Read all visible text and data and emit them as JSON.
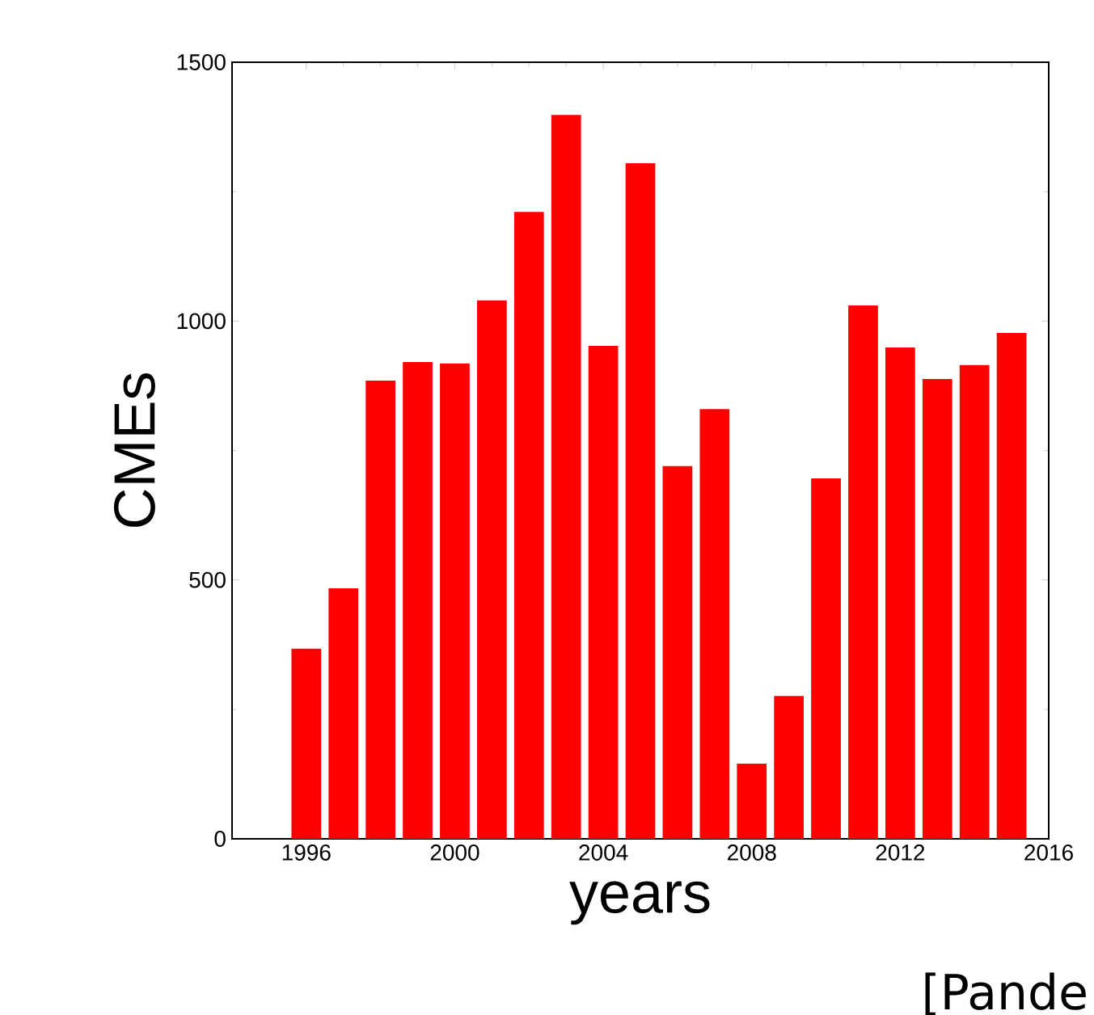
{
  "chart_data": {
    "type": "bar",
    "xlabel": "years",
    "ylabel": "CMEs",
    "color": "#ff0000",
    "x": [
      1996,
      1997,
      1998,
      1999,
      2000,
      2001,
      2002,
      2003,
      2004,
      2005,
      2006,
      2007,
      2008,
      2009,
      2010,
      2011,
      2012,
      2013,
      2014,
      2015
    ],
    "values": [
      367,
      484,
      885,
      921,
      918,
      1040,
      1211,
      1398,
      952,
      1305,
      720,
      830,
      145,
      276,
      696,
      1030,
      949,
      888,
      915,
      977
    ],
    "xlim": [
      1994,
      2016
    ],
    "ylim": [
      0,
      1500
    ],
    "xticks": [
      1996,
      2000,
      2004,
      2008,
      2012,
      2016
    ],
    "yticks": [
      0,
      500,
      1000,
      1500
    ],
    "grid": false,
    "annotations": [
      "[Pande"
    ]
  }
}
